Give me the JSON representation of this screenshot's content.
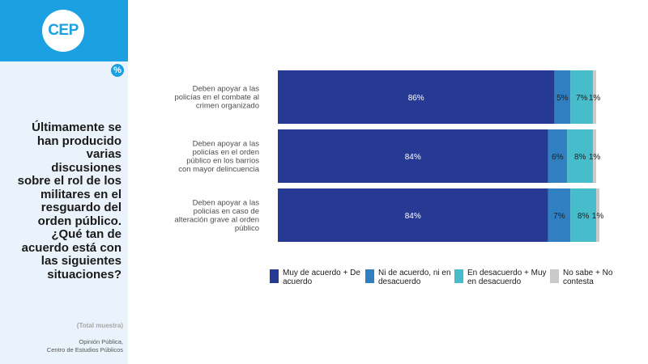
{
  "sidebar": {
    "logo": "CEP",
    "percent_badge": "%",
    "question": "Últimamente se han producido varias discusiones sobre el rol de los militares en el resguardo del orden público. ¿Qué tan de acuerdo está con las siguientes situaciones?",
    "sample_note": "(Total muestra)",
    "source_line1": "Opinión Pública,",
    "source_line2": "Centro de Estudios Públicos"
  },
  "colors": {
    "sidebar_accent": "#1ba0e2",
    "sidebar_bg": "#eaf3fb"
  },
  "chart_data": {
    "type": "bar",
    "orientation": "horizontal",
    "stacked": true,
    "categories": [
      [
        "Deben apoyar a las",
        "policías en el combate al",
        "crimen organizado"
      ],
      [
        "Deben apoyar a las",
        "policías en el orden",
        "público en los barrios",
        "con mayor delincuencia"
      ],
      [
        "Deben apoyar a las",
        "policías en caso de",
        "alteración grave al orden",
        "público"
      ]
    ],
    "series": [
      {
        "name": "Muy de acuerdo + De acuerdo",
        "color": "#263a94",
        "values": [
          86,
          84,
          84
        ],
        "labels": [
          "86%",
          "84%",
          "84%"
        ]
      },
      {
        "name": "Ni de acuerdo, ni en desacuerdo",
        "color": "#2f7fc1",
        "values": [
          5,
          6,
          7
        ],
        "labels": [
          "5%",
          "6%",
          "7%"
        ]
      },
      {
        "name": "En desacuerdo + Muy en desacuerdo",
        "color": "#47bccb",
        "values": [
          7,
          8,
          8
        ],
        "labels": [
          "7%",
          "8%",
          "8%"
        ]
      },
      {
        "name": "No sabe + No contesta",
        "color": "#c9c9c9",
        "values": [
          1,
          1,
          1
        ],
        "labels": [
          "1%",
          "1%",
          "1%"
        ]
      }
    ],
    "xlim": [
      0,
      100
    ],
    "legend_position": "bottom",
    "grid": false
  },
  "legend": [
    {
      "line1": "Muy de acuerdo + De",
      "line2": "acuerdo",
      "color": "#263a94"
    },
    {
      "line1": "Ni de acuerdo, ni en",
      "line2": "desacuerdo",
      "color": "#2f7fc1"
    },
    {
      "line1": "En desacuerdo + Muy",
      "line2": "en desacuerdo",
      "color": "#47bccb"
    },
    {
      "line1": "No sabe + No",
      "line2": "contesta",
      "color": "#c9c9c9"
    }
  ]
}
